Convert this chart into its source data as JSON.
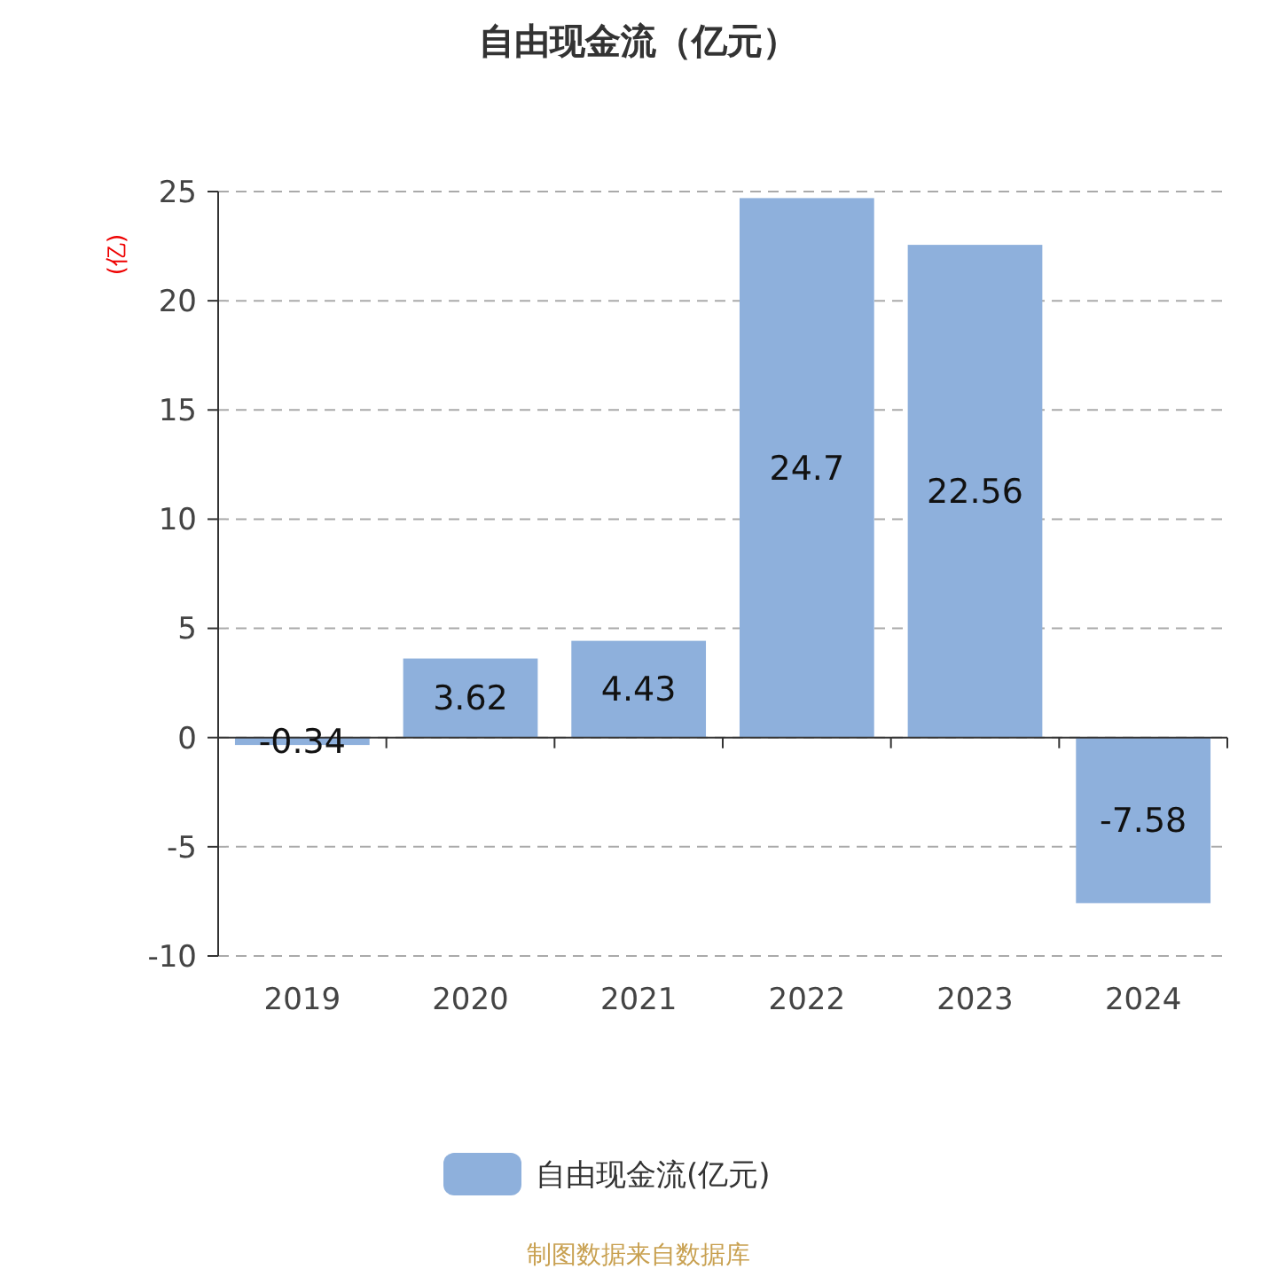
{
  "chart_data": {
    "type": "bar",
    "title": "自由现金流（亿元）",
    "ylabel": "(亿)",
    "categories": [
      "2019",
      "2020",
      "2021",
      "2022",
      "2023",
      "2024"
    ],
    "series": [
      {
        "name": "自由现金流(亿元)",
        "color": "#8eb0dc",
        "values": [
          -0.34,
          3.62,
          4.43,
          24.7,
          22.56,
          -7.58
        ]
      }
    ],
    "ylim": [
      -10,
      25
    ],
    "yticks": [
      -10,
      -5,
      0,
      5,
      10,
      15,
      20,
      25
    ],
    "grid": "y",
    "legend": "bottom",
    "data_labels": true,
    "annotations": [
      "制图数据来自数据库"
    ]
  }
}
